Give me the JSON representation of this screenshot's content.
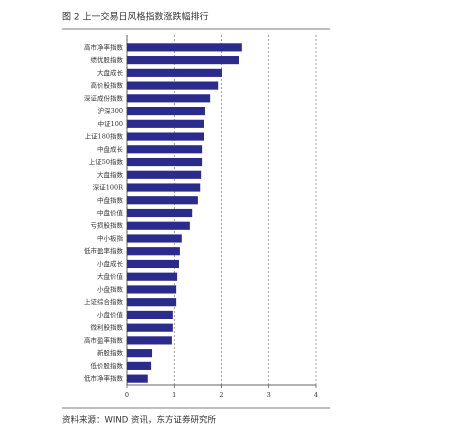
{
  "chart_data": {
    "type": "bar",
    "orientation": "horizontal",
    "title": "图 2 上一交易日风格指数涨跌幅排行",
    "source": "资料来源：WIND 资讯，东方证券研究所",
    "categories": [
      "高市净率指数",
      "绩优股指数",
      "大盘成长",
      "高价股指数",
      "深证成份指数",
      "沪深300",
      "中证100",
      "上证180指数",
      "中盘成长",
      "上证50指数",
      "大盘指数",
      "深证100R",
      "中盘指数",
      "中盘价值",
      "亏损股指数",
      "中小板指",
      "低市盈率指数",
      "小盘成长",
      "大盘价值",
      "小盘指数",
      "上证综合指数",
      "小盘价值",
      "微利股指数",
      "高市盈率指数",
      "新股指数",
      "低价股指数",
      "低市净率指数"
    ],
    "values": [
      2.43,
      2.37,
      2.01,
      1.93,
      1.76,
      1.65,
      1.63,
      1.63,
      1.59,
      1.59,
      1.57,
      1.55,
      1.5,
      1.38,
      1.33,
      1.16,
      1.12,
      1.1,
      1.06,
      1.04,
      1.04,
      0.97,
      0.97,
      0.95,
      0.53,
      0.51,
      0.44
    ],
    "color": "#2b2b8c",
    "xlim": [
      0,
      4
    ],
    "xticks": [
      0,
      1,
      2,
      3,
      4
    ],
    "grid": true
  }
}
